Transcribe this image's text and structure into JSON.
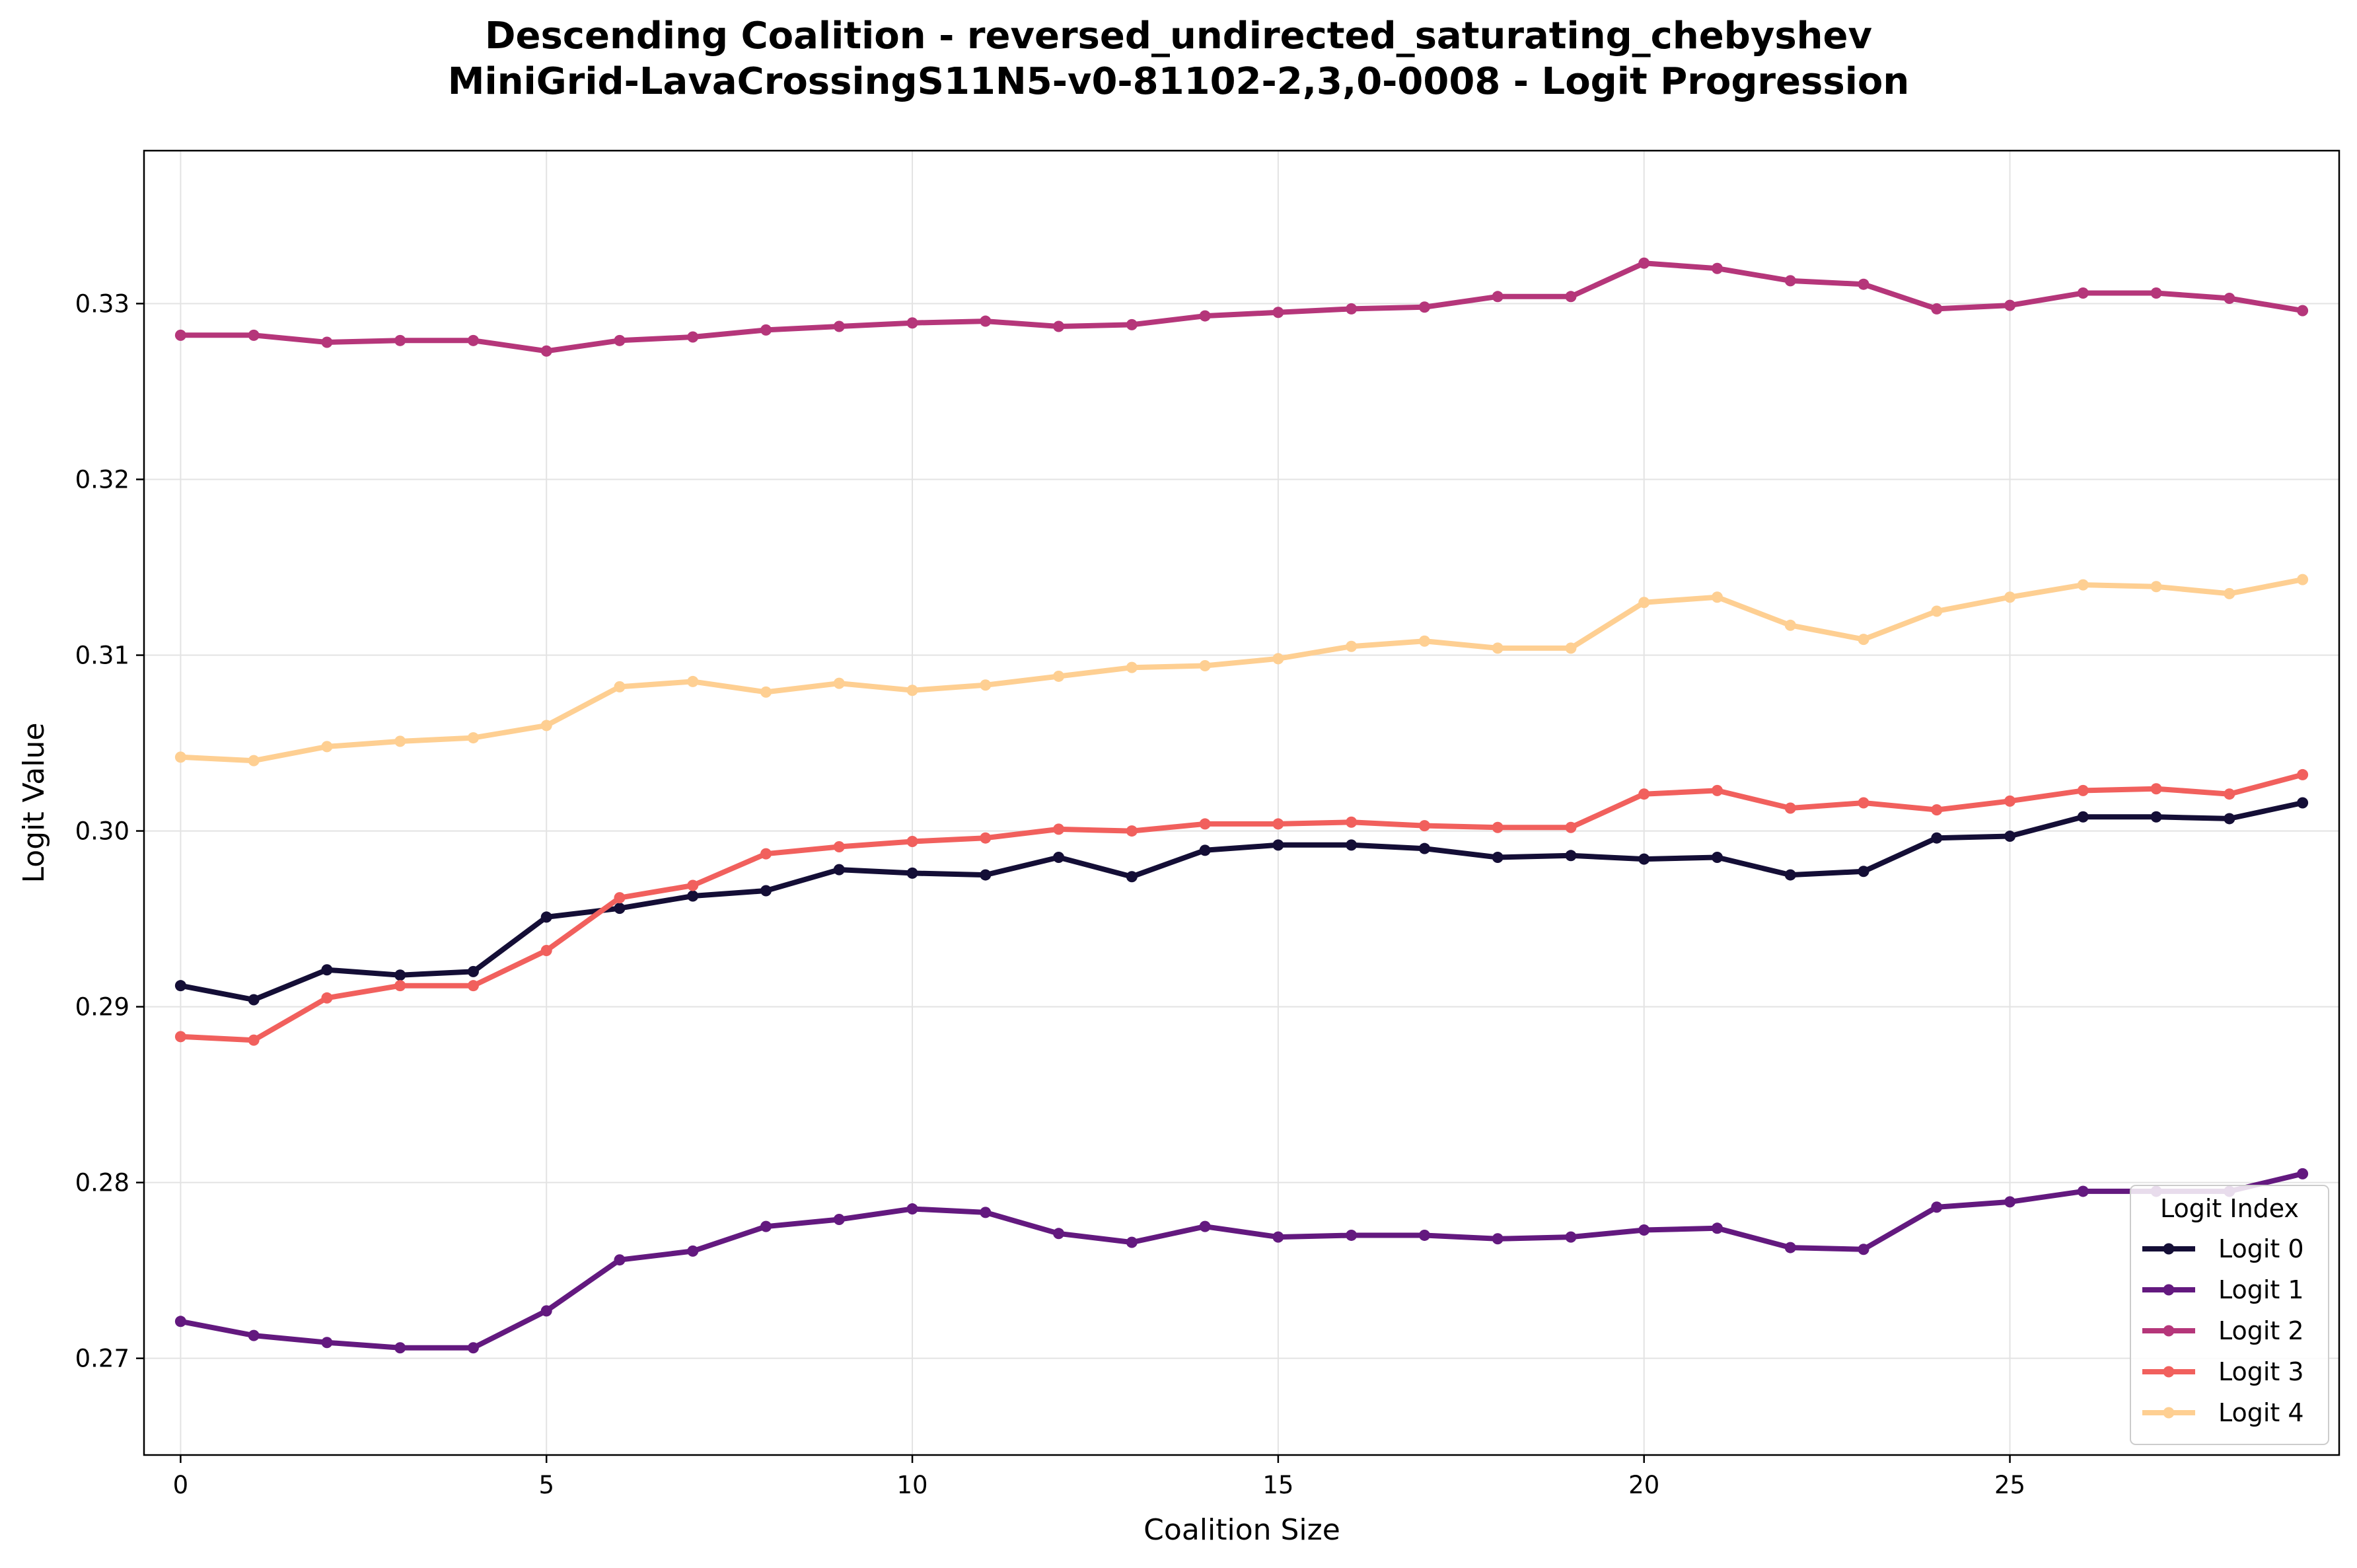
{
  "chart_data": {
    "type": "line",
    "title_line1": "Descending Coalition - reversed_undirected_saturating_chebyshev",
    "title_line2": "MiniGrid-LavaCrossingS11N5-v0-81102-2,3,0-0008 - Logit Progression",
    "xlabel": "Coalition Size",
    "ylabel": "Logit Value",
    "xlim": [
      -0.5,
      29.5
    ],
    "ylim": [
      0.2645,
      0.3387
    ],
    "xticks": [
      0,
      5,
      10,
      15,
      20,
      25
    ],
    "yticks": [
      0.27,
      0.28,
      0.29,
      0.3,
      0.31,
      0.32,
      0.33
    ],
    "ytick_labels": [
      "0.27",
      "0.28",
      "0.29",
      "0.30",
      "0.31",
      "0.32",
      "0.33"
    ],
    "grid": true,
    "legend_title": "Logit Index",
    "legend_position": "lower-right",
    "x": [
      0,
      1,
      2,
      3,
      4,
      5,
      6,
      7,
      8,
      9,
      10,
      11,
      12,
      13,
      14,
      15,
      16,
      17,
      18,
      19,
      20,
      21,
      22,
      23,
      24,
      25,
      26,
      27,
      28,
      29
    ],
    "series": [
      {
        "name": "Logit 0",
        "color": "#140e36",
        "values": [
          0.2912,
          0.2904,
          0.2921,
          0.2918,
          0.292,
          0.2951,
          0.2956,
          0.2963,
          0.2966,
          0.2978,
          0.2976,
          0.2975,
          0.2985,
          0.2974,
          0.2989,
          0.2992,
          0.2992,
          0.299,
          0.2985,
          0.2986,
          0.2984,
          0.2985,
          0.2975,
          0.2977,
          0.2996,
          0.2997,
          0.3008,
          0.3008,
          0.3007,
          0.3016
        ]
      },
      {
        "name": "Logit 1",
        "color": "#63197f",
        "values": [
          0.2721,
          0.2713,
          0.2709,
          0.2706,
          0.2706,
          0.2727,
          0.2756,
          0.2761,
          0.2775,
          0.2779,
          0.2785,
          0.2783,
          0.2771,
          0.2766,
          0.2775,
          0.2769,
          0.277,
          0.277,
          0.2768,
          0.2769,
          0.2773,
          0.2774,
          0.2763,
          0.2762,
          0.2786,
          0.2789,
          0.2795,
          0.2795,
          0.2795,
          0.2805
        ]
      },
      {
        "name": "Logit 2",
        "color": "#b5367a",
        "values": [
          0.3282,
          0.3282,
          0.3278,
          0.3279,
          0.3279,
          0.3273,
          0.3279,
          0.3281,
          0.3285,
          0.3287,
          0.3289,
          0.329,
          0.3287,
          0.3288,
          0.3293,
          0.3295,
          0.3297,
          0.3298,
          0.3304,
          0.3304,
          0.3323,
          0.332,
          0.3313,
          0.3311,
          0.3297,
          0.3299,
          0.3306,
          0.3306,
          0.3303,
          0.3296
        ]
      },
      {
        "name": "Logit 3",
        "color": "#f1605d",
        "values": [
          0.2883,
          0.2881,
          0.2905,
          0.2912,
          0.2912,
          0.2932,
          0.2962,
          0.2969,
          0.2987,
          0.2991,
          0.2994,
          0.2996,
          0.3001,
          0.3,
          0.3004,
          0.3004,
          0.3005,
          0.3003,
          0.3002,
          0.3002,
          0.3021,
          0.3023,
          0.3013,
          0.3016,
          0.3012,
          0.3017,
          0.3023,
          0.3024,
          0.3021,
          0.3032
        ]
      },
      {
        "name": "Logit 4",
        "color": "#fecf92",
        "values": [
          0.3042,
          0.304,
          0.3048,
          0.3051,
          0.3053,
          0.306,
          0.3082,
          0.3085,
          0.3079,
          0.3084,
          0.308,
          0.3083,
          0.3088,
          0.3093,
          0.3094,
          0.3098,
          0.3105,
          0.3108,
          0.3104,
          0.3104,
          0.313,
          0.3133,
          0.3117,
          0.3109,
          0.3125,
          0.3133,
          0.314,
          0.3139,
          0.3135,
          0.3143
        ]
      }
    ]
  }
}
